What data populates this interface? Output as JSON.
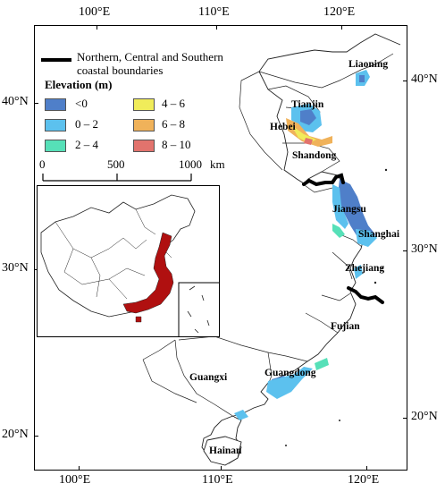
{
  "axes": {
    "top": [
      "100°E",
      "110°E",
      "120°E"
    ],
    "bottom": [
      "100°E",
      "110°E",
      "120°E"
    ],
    "left": [
      "40°N",
      "30°N",
      "20°N"
    ],
    "right": [
      "40°N",
      "30°N",
      "20°N"
    ]
  },
  "legend": {
    "boundary_label": "Northern, Central and Southern",
    "boundary_label_2": "coastal boundaries",
    "title": "Elevation (m)",
    "classes": [
      {
        "label": "<0",
        "color": "#4f7fc9"
      },
      {
        "label": "0 – 2",
        "color": "#5cc1ee"
      },
      {
        "label": "2 – 4",
        "color": "#56e0b8"
      },
      {
        "label": "4 – 6",
        "color": "#f0ec5a"
      },
      {
        "label": "6 – 8",
        "color": "#f0b25a"
      },
      {
        "label": "8 – 10",
        "color": "#e2736d"
      }
    ]
  },
  "scalebar": {
    "ticks": [
      "0",
      "500",
      "1000"
    ],
    "unit": "km"
  },
  "provinces": {
    "liaoning": "Liaoning",
    "tianjin": "Tianjin",
    "hebei": "Hebei",
    "shandong": "Shandong",
    "jiangsu": "Jiangsu",
    "shanghai": "Shanghai",
    "zhejiang": "Zhejiang",
    "fujian": "Fujian",
    "guangxi": "Guangxi",
    "guangdong": "Guangdong",
    "hainan": "Hainan"
  },
  "inset_highlight_color": "#b01010"
}
